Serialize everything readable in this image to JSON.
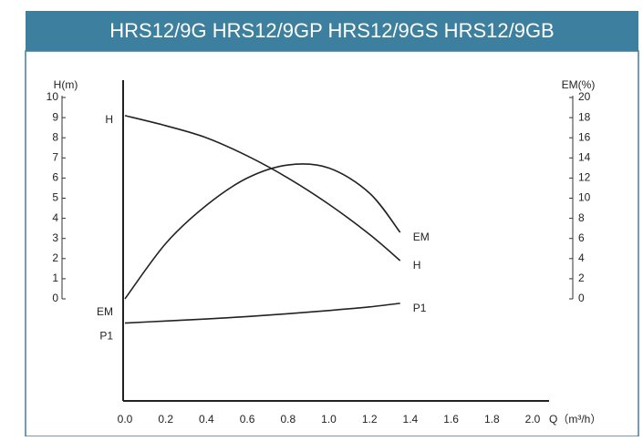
{
  "chart_data": {
    "type": "line",
    "title": "HRS12/9G HRS12/9GP HRS12/9GS HRS12/9GB",
    "y_label": "H(m)",
    "y2_label": "EM(%)",
    "x_label": "Q（m³/h）",
    "xlim": [
      0,
      2.0
    ],
    "xticks": [
      {
        "value": 0,
        "label": "0.0"
      },
      0.2,
      0.4,
      0.6,
      0.8,
      {
        "value": 1,
        "label": "1.0"
      },
      1.2,
      1.4,
      1.6,
      1.8,
      {
        "value": 2,
        "label": "2.0"
      }
    ],
    "ylim": [
      -5,
      10
    ],
    "yticks": [
      0,
      1,
      2,
      3,
      4,
      5,
      6,
      7,
      8,
      9,
      10
    ],
    "y2lim": [
      -10,
      20
    ],
    "y2ticks": [
      0,
      2,
      4,
      6,
      8,
      10,
      12,
      14,
      16,
      18,
      20
    ],
    "series": [
      {
        "name": "H",
        "color": "#222222",
        "x": [
          0,
          0.2,
          0.4,
          0.6,
          0.8,
          1.0,
          1.2,
          1.35
        ],
        "values": [
          9.1,
          8.6,
          8.0,
          7.1,
          6.0,
          4.7,
          3.2,
          1.9
        ]
      },
      {
        "name": "EM",
        "color": "#222222",
        "axis": "y2",
        "x": [
          0,
          0.2,
          0.4,
          0.6,
          0.8,
          1.0,
          1.2,
          1.35
        ],
        "values": [
          0,
          5.5,
          9.3,
          12.0,
          13.3,
          13.0,
          10.5,
          6.6
        ]
      },
      {
        "name": "P1",
        "color": "#222222",
        "x": [
          0,
          0.2,
          0.4,
          0.6,
          0.8,
          1.0,
          1.2,
          1.35
        ],
        "values": [
          -1.2,
          -1.1,
          -1.0,
          -0.88,
          -0.74,
          -0.58,
          -0.4,
          -0.22
        ]
      }
    ]
  }
}
